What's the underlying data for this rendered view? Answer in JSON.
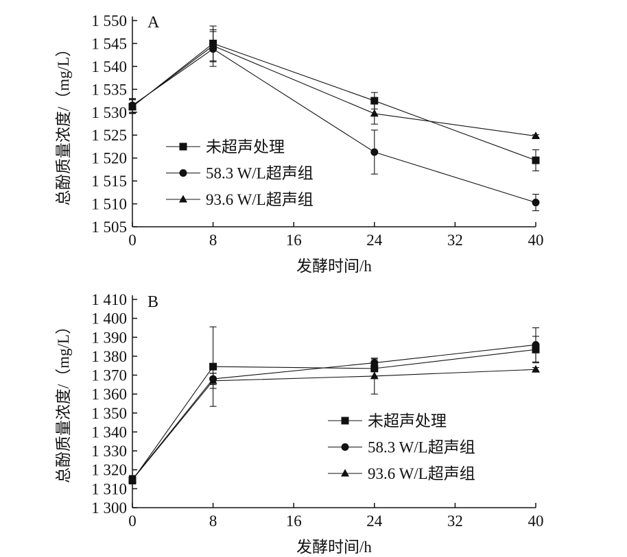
{
  "chart_data": [
    {
      "type": "line",
      "panel_label": "A",
      "xlabel": "发酵时间/h",
      "ylabel": "总酚质量浓度/（mg/L）",
      "x": [
        0,
        8,
        24,
        40
      ],
      "xlim": [
        0,
        40
      ],
      "xticks": [
        "0",
        "8",
        "16",
        "24",
        "32",
        "40"
      ],
      "ylim": [
        1505,
        1550
      ],
      "yticks": [
        "1 505",
        "1 510",
        "1 515",
        "1 520",
        "1 525",
        "1 530",
        "1 535",
        "1 540",
        "1 545",
        "1 550"
      ],
      "legend_position": "lower-left",
      "series": [
        {
          "name": "未超声处理",
          "marker": "square",
          "values": [
            1531.2,
            1545.0,
            1532.5,
            1519.5
          ],
          "errors": [
            1.5,
            3.8,
            1.8,
            2.3
          ]
        },
        {
          "name": "58.3 W/L超声组",
          "marker": "circle",
          "values": [
            1531.5,
            1543.8,
            1521.3,
            1510.3
          ],
          "errors": [
            1.5,
            3.8,
            4.8,
            1.8
          ]
        },
        {
          "name": "93.6 W/L超声组",
          "marker": "triangle",
          "values": [
            1531.3,
            1544.5,
            1529.7,
            1524.8
          ],
          "errors": [
            1.5,
            3.5,
            2.3,
            0.3
          ]
        }
      ]
    },
    {
      "type": "line",
      "panel_label": "B",
      "xlabel": "发酵时间/h",
      "ylabel": "总酚质量浓度/（mg/L）",
      "x": [
        0,
        8,
        24,
        40
      ],
      "xlim": [
        0,
        40
      ],
      "xticks": [
        "0",
        "8",
        "16",
        "24",
        "32",
        "40"
      ],
      "ylim": [
        1300,
        1410
      ],
      "yticks": [
        "1 300",
        "1 310",
        "1 320",
        "1 330",
        "1 340",
        "1 350",
        "1 360",
        "1 370",
        "1 380",
        "1 390",
        "1 400",
        "1 410"
      ],
      "legend_position": "lower-right",
      "series": [
        {
          "name": "未超声处理",
          "marker": "square",
          "values": [
            1314.5,
            1374.5,
            1373.5,
            1383.5
          ],
          "errors": [
            2,
            21,
            4,
            7
          ]
        },
        {
          "name": "58.3 W/L超声组",
          "marker": "circle",
          "values": [
            1315.0,
            1368.0,
            1376.5,
            1386.0
          ],
          "errors": [
            2,
            3,
            2,
            9
          ]
        },
        {
          "name": "93.6 W/L超声组",
          "marker": "triangle",
          "values": [
            1314.8,
            1367.0,
            1369.5,
            1373.0
          ],
          "errors": [
            2,
            4,
            9.5,
            1
          ]
        }
      ]
    }
  ]
}
